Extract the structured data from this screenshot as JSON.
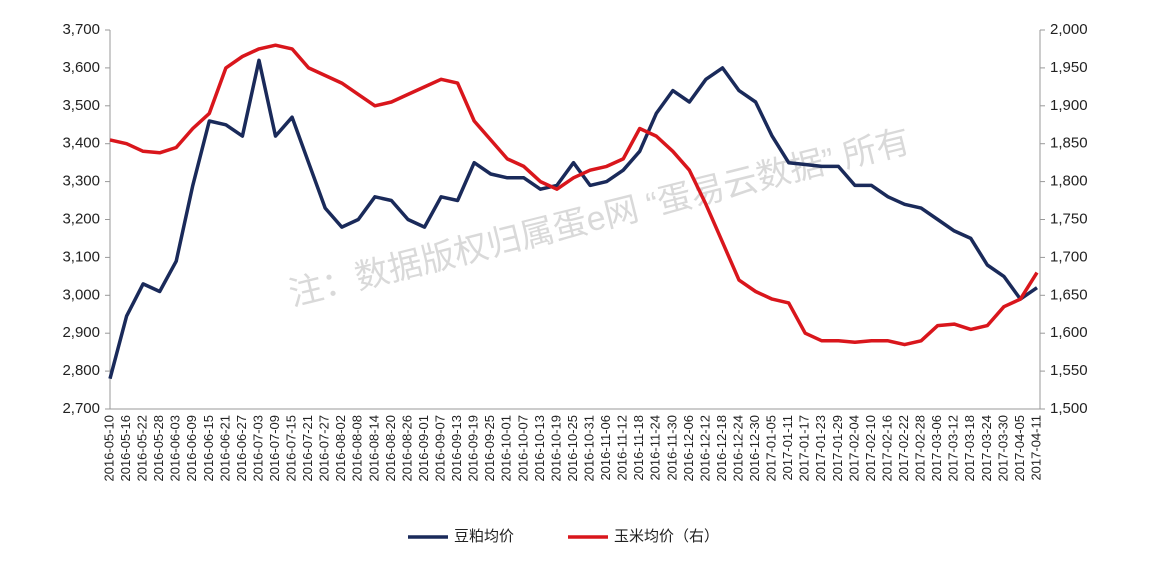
{
  "chart_data": {
    "type": "line",
    "watermark": "注：数据版权归属蛋e网 “蛋易云数据” 所有",
    "categories": [
      "2016-05-10",
      "2016-05-16",
      "2016-05-22",
      "2016-05-28",
      "2016-06-03",
      "2016-06-09",
      "2016-06-15",
      "2016-06-21",
      "2016-06-27",
      "2016-07-03",
      "2016-07-09",
      "2016-07-15",
      "2016-07-21",
      "2016-07-27",
      "2016-08-02",
      "2016-08-08",
      "2016-08-14",
      "2016-08-20",
      "2016-08-26",
      "2016-09-01",
      "2016-09-07",
      "2016-09-13",
      "2016-09-19",
      "2016-09-25",
      "2016-10-01",
      "2016-10-07",
      "2016-10-13",
      "2016-10-19",
      "2016-10-25",
      "2016-10-31",
      "2016-11-06",
      "2016-11-12",
      "2016-11-18",
      "2016-11-24",
      "2016-11-30",
      "2016-12-06",
      "2016-12-12",
      "2016-12-18",
      "2016-12-24",
      "2016-12-30",
      "2017-01-05",
      "2017-01-11",
      "2017-01-17",
      "2017-01-23",
      "2017-01-29",
      "2017-02-04",
      "2017-02-10",
      "2017-02-16",
      "2017-02-22",
      "2017-02-28",
      "2017-03-06",
      "2017-03-12",
      "2017-03-18",
      "2017-03-24",
      "2017-03-30",
      "2017-04-05",
      "2017-04-11"
    ],
    "series": [
      {
        "name": "豆粕均价",
        "color": "#1a2a5a",
        "values": [
          2780,
          2945,
          3030,
          3010,
          3090,
          3290,
          3460,
          3450,
          3420,
          3620,
          3420,
          3470,
          3350,
          3230,
          3180,
          3200,
          3260,
          3250,
          3200,
          3180,
          3260,
          3250,
          3350,
          3320,
          3310,
          3310,
          3280,
          3290,
          3350,
          3290,
          3300,
          3330,
          3380,
          3480,
          3540,
          3510,
          3570,
          3600,
          3540,
          3510,
          3420,
          3350,
          3345,
          3340,
          3340,
          3290,
          3290,
          3260,
          3240,
          3230,
          3200,
          3170,
          3150,
          3080,
          3050,
          2990,
          3020
        ]
      },
      {
        "name": "玉米均价（右）",
        "color": "#d9161c",
        "axis": "y2",
        "values": [
          1855,
          1850,
          1840,
          1838,
          1845,
          1870,
          1890,
          1950,
          1965,
          1975,
          1980,
          1975,
          1950,
          1940,
          1930,
          1915,
          1900,
          1905,
          1915,
          1925,
          1935,
          1930,
          1880,
          1855,
          1830,
          1820,
          1800,
          1790,
          1805,
          1815,
          1820,
          1830,
          1870,
          1860,
          1840,
          1815,
          1770,
          1720,
          1670,
          1655,
          1645,
          1640,
          1600,
          1590,
          1590,
          1588,
          1590,
          1590,
          1585,
          1590,
          1610,
          1612,
          1605,
          1610,
          1635,
          1645,
          1680
        ]
      }
    ],
    "ylim": [
      2700,
      3700
    ],
    "yticks": [
      {
        "value": 2700,
        "label": "2,700"
      },
      {
        "value": 2800,
        "label": "2,800"
      },
      {
        "value": 2900,
        "label": "2,900"
      },
      {
        "value": 3000,
        "label": "3,000"
      },
      {
        "value": 3100,
        "label": "3,100"
      },
      {
        "value": 3200,
        "label": "3,200"
      },
      {
        "value": 3300,
        "label": "3,300"
      },
      {
        "value": 3400,
        "label": "3,400"
      },
      {
        "value": 3500,
        "label": "3,500"
      },
      {
        "value": 3600,
        "label": "3,600"
      },
      {
        "value": 3700,
        "label": "3,700"
      }
    ],
    "y2lim": [
      1500,
      2000
    ],
    "y2ticks": [
      {
        "value": 1500,
        "label": "1,500"
      },
      {
        "value": 1550,
        "label": "1,550"
      },
      {
        "value": 1600,
        "label": "1,600"
      },
      {
        "value": 1650,
        "label": "1,650"
      },
      {
        "value": 1700,
        "label": "1,700"
      },
      {
        "value": 1750,
        "label": "1,750"
      },
      {
        "value": 1800,
        "label": "1,800"
      },
      {
        "value": 1850,
        "label": "1,850"
      },
      {
        "value": 1900,
        "label": "1,900"
      },
      {
        "value": 1950,
        "label": "1,950"
      },
      {
        "value": 2000,
        "label": "2,000"
      }
    ]
  }
}
